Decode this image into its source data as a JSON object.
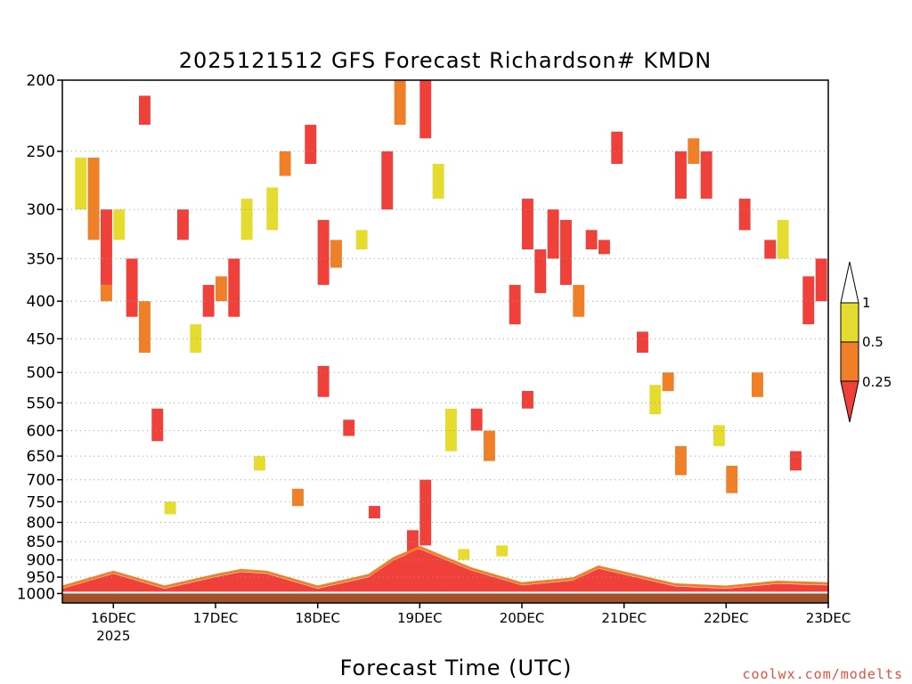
{
  "chart_data": {
    "type": "heatmap",
    "title": "2025121512 GFS Forecast Richardson# KMDN",
    "xlabel": "Forecast Time (UTC)",
    "ylabel": "",
    "credit": "coolwx.com/modelts",
    "x_start": "2025-12-15T12:00Z",
    "x_end": "2025-12-23T00:00Z",
    "x_ticks": [
      {
        "label": "16DEC",
        "sub": "2025",
        "time": "2025-12-16T00:00Z"
      },
      {
        "label": "17DEC",
        "time": "2025-12-17T00:00Z"
      },
      {
        "label": "18DEC",
        "time": "2025-12-18T00:00Z"
      },
      {
        "label": "19DEC",
        "time": "2025-12-19T00:00Z"
      },
      {
        "label": "20DEC",
        "time": "2025-12-20T00:00Z"
      },
      {
        "label": "21DEC",
        "time": "2025-12-21T00:00Z"
      },
      {
        "label": "22DEC",
        "time": "2025-12-22T00:00Z"
      },
      {
        "label": "23DEC",
        "time": "2025-12-23T00:00Z"
      }
    ],
    "y_ticks_hpa": [
      {
        "label": "200",
        "value": 200
      },
      {
        "label": "250",
        "value": 250
      },
      {
        "label": "300",
        "value": 300
      },
      {
        "label": "350",
        "value": 350
      },
      {
        "label": "400",
        "value": 400
      },
      {
        "label": "450",
        "value": 450
      },
      {
        "label": "500",
        "value": 500
      },
      {
        "label": "550",
        "value": 550
      },
      {
        "label": "600",
        "value": 600
      },
      {
        "label": "650",
        "value": 650
      },
      {
        "label": "700",
        "value": 700
      },
      {
        "label": "750",
        "value": 750
      },
      {
        "label": "800",
        "value": 800
      },
      {
        "label": "850",
        "value": 850
      },
      {
        "label": "900",
        "value": 900
      },
      {
        "label": "950",
        "value": 950
      },
      {
        "label": "1000",
        "value": 1000
      }
    ],
    "ylim_hpa": [
      1030,
      200
    ],
    "y_scale": "log-pressure",
    "grid_dotted": true,
    "colorbar": {
      "ticks": [
        "1",
        "0.5",
        "0.25"
      ],
      "colors": {
        "lt_025": "#f0403a",
        "025_05": "#f08028",
        "05_1": "#e6dc30",
        "gt_1": "#ffffff"
      }
    },
    "ground_color": "#a0522d",
    "highlight_regions": [
      {
        "t0": "2025-12-15T12:00Z",
        "t1": "2025-12-23T00:00Z",
        "p_top": 990,
        "class": "lt_025",
        "note_pbl": true
      }
    ],
    "pbl_depth_hpa": [
      {
        "t": "2025-12-15T12:00Z",
        "p": 985
      },
      {
        "t": "2025-12-16T00:00Z",
        "p": 940
      },
      {
        "t": "2025-12-16T12:00Z",
        "p": 985
      },
      {
        "t": "2025-12-17T00:00Z",
        "p": 950
      },
      {
        "t": "2025-12-17T06:00Z",
        "p": 935
      },
      {
        "t": "2025-12-17T12:00Z",
        "p": 940
      },
      {
        "t": "2025-12-18T00:00Z",
        "p": 985
      },
      {
        "t": "2025-12-18T12:00Z",
        "p": 950
      },
      {
        "t": "2025-12-18T18:00Z",
        "p": 900
      },
      {
        "t": "2025-12-19T00:00Z",
        "p": 870
      },
      {
        "t": "2025-12-19T12:00Z",
        "p": 930
      },
      {
        "t": "2025-12-20T00:00Z",
        "p": 975
      },
      {
        "t": "2025-12-20T12:00Z",
        "p": 960
      },
      {
        "t": "2025-12-20T18:00Z",
        "p": 925
      },
      {
        "t": "2025-12-21T06:00Z",
        "p": 960
      },
      {
        "t": "2025-12-21T12:00Z",
        "p": 978
      },
      {
        "t": "2025-12-22T00:00Z",
        "p": 985
      },
      {
        "t": "2025-12-22T12:00Z",
        "p": 970
      },
      {
        "t": "2025-12-23T00:00Z",
        "p": 975
      }
    ],
    "cells": [
      {
        "t": "2025-12-15T15:00Z",
        "p0": 255,
        "p1": 300,
        "c": "05_1"
      },
      {
        "t": "2025-12-15T18:00Z",
        "p0": 255,
        "p1": 330,
        "c": "025_05"
      },
      {
        "t": "2025-12-15T21:00Z",
        "p0": 300,
        "p1": 380,
        "c": "lt_025"
      },
      {
        "t": "2025-12-15T21:00Z",
        "p0": 380,
        "p1": 400,
        "c": "025_05"
      },
      {
        "t": "2025-12-16T00:00Z",
        "p0": 300,
        "p1": 330,
        "c": "05_1"
      },
      {
        "t": "2025-12-16T03:00Z",
        "p0": 350,
        "p1": 420,
        "c": "lt_025"
      },
      {
        "t": "2025-12-16T06:00Z",
        "p0": 210,
        "p1": 230,
        "c": "lt_025"
      },
      {
        "t": "2025-12-16T06:00Z",
        "p0": 400,
        "p1": 470,
        "c": "025_05"
      },
      {
        "t": "2025-12-16T09:00Z",
        "p0": 560,
        "p1": 620,
        "c": "lt_025"
      },
      {
        "t": "2025-12-16T12:00Z",
        "p0": 750,
        "p1": 780,
        "c": "05_1"
      },
      {
        "t": "2025-12-16T15:00Z",
        "p0": 300,
        "p1": 330,
        "c": "lt_025"
      },
      {
        "t": "2025-12-16T18:00Z",
        "p0": 430,
        "p1": 470,
        "c": "05_1"
      },
      {
        "t": "2025-12-16T21:00Z",
        "p0": 380,
        "p1": 420,
        "c": "lt_025"
      },
      {
        "t": "2025-12-17T00:00Z",
        "p0": 370,
        "p1": 400,
        "c": "025_05"
      },
      {
        "t": "2025-12-17T03:00Z",
        "p0": 350,
        "p1": 420,
        "c": "lt_025"
      },
      {
        "t": "2025-12-17T06:00Z",
        "p0": 290,
        "p1": 330,
        "c": "05_1"
      },
      {
        "t": "2025-12-17T09:00Z",
        "p0": 650,
        "p1": 680,
        "c": "05_1"
      },
      {
        "t": "2025-12-17T12:00Z",
        "p0": 280,
        "p1": 320,
        "c": "05_1"
      },
      {
        "t": "2025-12-17T15:00Z",
        "p0": 250,
        "p1": 270,
        "c": "025_05"
      },
      {
        "t": "2025-12-17T18:00Z",
        "p0": 720,
        "p1": 760,
        "c": "025_05"
      },
      {
        "t": "2025-12-17T21:00Z",
        "p0": 230,
        "p1": 260,
        "c": "lt_025"
      },
      {
        "t": "2025-12-18T00:00Z",
        "p0": 310,
        "p1": 380,
        "c": "lt_025"
      },
      {
        "t": "2025-12-18T00:00Z",
        "p0": 490,
        "p1": 540,
        "c": "lt_025"
      },
      {
        "t": "2025-12-18T03:00Z",
        "p0": 330,
        "p1": 360,
        "c": "025_05"
      },
      {
        "t": "2025-12-18T06:00Z",
        "p0": 580,
        "p1": 610,
        "c": "lt_025"
      },
      {
        "t": "2025-12-18T09:00Z",
        "p0": 320,
        "p1": 340,
        "c": "05_1"
      },
      {
        "t": "2025-12-18T12:00Z",
        "p0": 760,
        "p1": 790,
        "c": "lt_025"
      },
      {
        "t": "2025-12-18T15:00Z",
        "p0": 250,
        "p1": 300,
        "c": "lt_025"
      },
      {
        "t": "2025-12-18T18:00Z",
        "p0": 200,
        "p1": 230,
        "c": "025_05"
      },
      {
        "t": "2025-12-18T21:00Z",
        "p0": 820,
        "p1": 900,
        "c": "lt_025"
      },
      {
        "t": "2025-12-19T00:00Z",
        "p0": 200,
        "p1": 240,
        "c": "lt_025"
      },
      {
        "t": "2025-12-19T00:00Z",
        "p0": 700,
        "p1": 860,
        "c": "lt_025"
      },
      {
        "t": "2025-12-19T03:00Z",
        "p0": 260,
        "p1": 290,
        "c": "05_1"
      },
      {
        "t": "2025-12-19T06:00Z",
        "p0": 560,
        "p1": 640,
        "c": "05_1"
      },
      {
        "t": "2025-12-19T09:00Z",
        "p0": 870,
        "p1": 900,
        "c": "05_1"
      },
      {
        "t": "2025-12-19T12:00Z",
        "p0": 560,
        "p1": 600,
        "c": "lt_025"
      },
      {
        "t": "2025-12-19T15:00Z",
        "p0": 600,
        "p1": 660,
        "c": "025_05"
      },
      {
        "t": "2025-12-19T18:00Z",
        "p0": 860,
        "p1": 890,
        "c": "05_1"
      },
      {
        "t": "2025-12-19T21:00Z",
        "p0": 380,
        "p1": 430,
        "c": "lt_025"
      },
      {
        "t": "2025-12-20T00:00Z",
        "p0": 290,
        "p1": 340,
        "c": "lt_025"
      },
      {
        "t": "2025-12-20T00:00Z",
        "p0": 530,
        "p1": 560,
        "c": "lt_025"
      },
      {
        "t": "2025-12-20T03:00Z",
        "p0": 340,
        "p1": 390,
        "c": "lt_025"
      },
      {
        "t": "2025-12-20T06:00Z",
        "p0": 300,
        "p1": 350,
        "c": "lt_025"
      },
      {
        "t": "2025-12-20T09:00Z",
        "p0": 310,
        "p1": 380,
        "c": "lt_025"
      },
      {
        "t": "2025-12-20T12:00Z",
        "p0": 380,
        "p1": 420,
        "c": "025_05"
      },
      {
        "t": "2025-12-20T15:00Z",
        "p0": 320,
        "p1": 340,
        "c": "lt_025"
      },
      {
        "t": "2025-12-20T18:00Z",
        "p0": 330,
        "p1": 345,
        "c": "lt_025"
      },
      {
        "t": "2025-12-20T21:00Z",
        "p0": 235,
        "p1": 260,
        "c": "lt_025"
      },
      {
        "t": "2025-12-21T03:00Z",
        "p0": 440,
        "p1": 470,
        "c": "lt_025"
      },
      {
        "t": "2025-12-21T06:00Z",
        "p0": 520,
        "p1": 570,
        "c": "05_1"
      },
      {
        "t": "2025-12-21T09:00Z",
        "p0": 500,
        "p1": 530,
        "c": "025_05"
      },
      {
        "t": "2025-12-21T12:00Z",
        "p0": 250,
        "p1": 290,
        "c": "lt_025"
      },
      {
        "t": "2025-12-21T12:00Z",
        "p0": 630,
        "p1": 690,
        "c": "025_05"
      },
      {
        "t": "2025-12-21T15:00Z",
        "p0": 240,
        "p1": 260,
        "c": "025_05"
      },
      {
        "t": "2025-12-21T18:00Z",
        "p0": 250,
        "p1": 290,
        "c": "lt_025"
      },
      {
        "t": "2025-12-21T21:00Z",
        "p0": 590,
        "p1": 630,
        "c": "05_1"
      },
      {
        "t": "2025-12-22T00:00Z",
        "p0": 670,
        "p1": 730,
        "c": "025_05"
      },
      {
        "t": "2025-12-22T03:00Z",
        "p0": 290,
        "p1": 320,
        "c": "lt_025"
      },
      {
        "t": "2025-12-22T06:00Z",
        "p0": 500,
        "p1": 540,
        "c": "025_05"
      },
      {
        "t": "2025-12-22T09:00Z",
        "p0": 330,
        "p1": 350,
        "c": "lt_025"
      },
      {
        "t": "2025-12-22T12:00Z",
        "p0": 310,
        "p1": 350,
        "c": "05_1"
      },
      {
        "t": "2025-12-22T15:00Z",
        "p0": 640,
        "p1": 680,
        "c": "lt_025"
      },
      {
        "t": "2025-12-22T18:00Z",
        "p0": 370,
        "p1": 430,
        "c": "lt_025"
      },
      {
        "t": "2025-12-22T21:00Z",
        "p0": 350,
        "p1": 400,
        "c": "lt_025"
      }
    ]
  }
}
